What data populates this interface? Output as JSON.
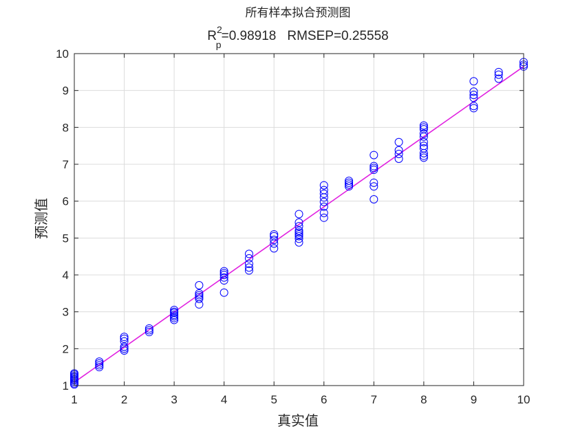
{
  "chart_data": {
    "type": "scatter",
    "title": "所有样本拟合预测图",
    "subtitle": {
      "r_symbol": "R",
      "r_superscript": "2",
      "r_subscript": "p",
      "r_value": "=0.98918",
      "rmsep": "RMSEP=0.25558"
    },
    "xlabel": "真实值",
    "ylabel": "预测值",
    "xlim": [
      1,
      10
    ],
    "ylim": [
      1,
      10
    ],
    "xticks": [
      "1",
      "2",
      "3",
      "4",
      "5",
      "6",
      "7",
      "8",
      "9",
      "10"
    ],
    "yticks": [
      "1",
      "2",
      "3",
      "4",
      "5",
      "6",
      "7",
      "8",
      "9",
      "10"
    ],
    "grid": true,
    "colors": {
      "points": "#0000ff",
      "fit_line": "#e020e0",
      "grid": "#dcdcdc",
      "axes": "#262626"
    },
    "fit_line": {
      "x": [
        1,
        10
      ],
      "y": [
        1.09,
        9.65
      ]
    },
    "series": [
      {
        "x": [
          1,
          1,
          1,
          1,
          1,
          1,
          1,
          1,
          1,
          1,
          1.5,
          1.5,
          1.5,
          1.5,
          2,
          2,
          2,
          2,
          2,
          2,
          2.5,
          2.5,
          2.5,
          3,
          3,
          3,
          3,
          3,
          3,
          3,
          3.5,
          3.5,
          3.5,
          3.5,
          3.5,
          3.5,
          4,
          4,
          4,
          4,
          4,
          4,
          4.5,
          4.5,
          4.5,
          4.5,
          4.5,
          5,
          5,
          5,
          5,
          5,
          5.5,
          5.5,
          5.5,
          5.5,
          5.5,
          5.5,
          5.5,
          5.5,
          5.5,
          6,
          6,
          6,
          6,
          6,
          6,
          6,
          6,
          6.5,
          6.5,
          6.5,
          6.5,
          7,
          7,
          7,
          7,
          7,
          7,
          7,
          7.5,
          7.5,
          7.5,
          7.5,
          8,
          8,
          8,
          8,
          8,
          8,
          8,
          8,
          8,
          8,
          8,
          9,
          9,
          9,
          9,
          9,
          9,
          9.5,
          9.5,
          9.5,
          10,
          10,
          10
        ],
        "y": [
          1.03,
          1.06,
          1.1,
          1.14,
          1.17,
          1.2,
          1.23,
          1.26,
          1.3,
          1.33,
          1.5,
          1.55,
          1.6,
          1.65,
          1.95,
          2.0,
          2.05,
          2.2,
          2.27,
          2.32,
          2.45,
          2.5,
          2.55,
          2.78,
          2.83,
          2.88,
          2.92,
          2.97,
          3.0,
          3.05,
          3.2,
          3.35,
          3.4,
          3.45,
          3.5,
          3.72,
          3.52,
          3.85,
          3.93,
          4.0,
          4.05,
          4.1,
          4.12,
          4.2,
          4.3,
          4.45,
          4.57,
          4.72,
          4.85,
          4.95,
          5.05,
          5.1,
          4.88,
          4.98,
          5.05,
          5.1,
          5.15,
          5.2,
          5.32,
          5.42,
          5.65,
          5.55,
          5.68,
          5.85,
          5.98,
          6.1,
          6.2,
          6.3,
          6.43,
          6.4,
          6.45,
          6.5,
          6.55,
          6.05,
          6.4,
          6.5,
          6.85,
          6.9,
          6.95,
          7.25,
          7.15,
          7.28,
          7.38,
          7.6,
          7.18,
          7.23,
          7.3,
          7.43,
          7.5,
          7.6,
          7.75,
          7.83,
          7.95,
          8.0,
          8.05,
          8.52,
          8.58,
          8.8,
          8.88,
          8.97,
          9.25,
          9.32,
          9.43,
          9.5,
          9.65,
          9.7,
          9.77
        ]
      }
    ]
  }
}
